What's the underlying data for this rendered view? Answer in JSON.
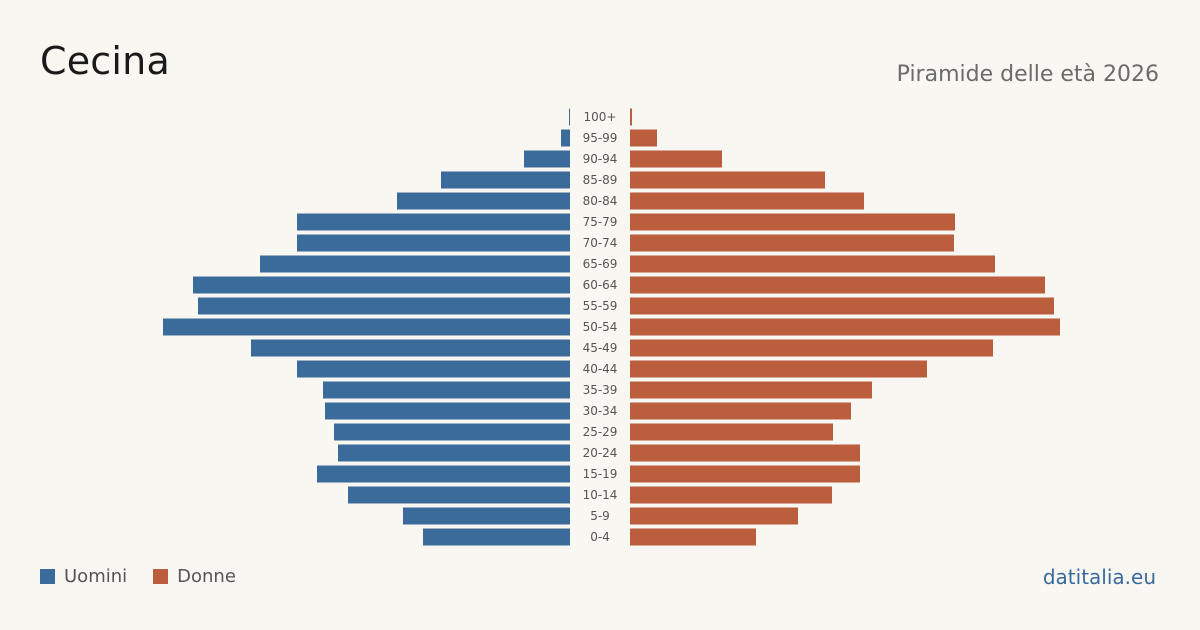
{
  "header": {
    "title": "Cecina",
    "subtitle": "Piramide delle età 2026"
  },
  "legend": {
    "men_label": "Uomini",
    "women_label": "Donne"
  },
  "footer": {
    "brand": "datitalia.eu"
  },
  "colors": {
    "men": "#3b6b9b",
    "women": "#bb5e3e",
    "age_label": "#555555"
  },
  "chart_data": {
    "type": "bar",
    "orientation": "horizontal-pyramid",
    "categories": [
      "100+",
      "95-99",
      "90-94",
      "85-89",
      "80-84",
      "75-79",
      "70-74",
      "65-69",
      "60-64",
      "55-59",
      "50-54",
      "45-49",
      "40-44",
      "35-39",
      "30-34",
      "25-29",
      "20-24",
      "15-19",
      "10-14",
      "5-9",
      "0-4"
    ],
    "series": [
      {
        "name": "Uomini",
        "values": [
          1,
          9,
          46,
          129,
          173,
          273,
          273,
          310,
          377,
          372,
          407,
          319,
          273,
          247,
          245,
          236,
          232,
          253,
          222,
          167,
          147
        ]
      },
      {
        "name": "Donne",
        "values": [
          2,
          27,
          92,
          195,
          234,
          325,
          324,
          365,
          415,
          424,
          430,
          363,
          297,
          242,
          221,
          203,
          230,
          230,
          202,
          168,
          126
        ]
      }
    ]
  }
}
